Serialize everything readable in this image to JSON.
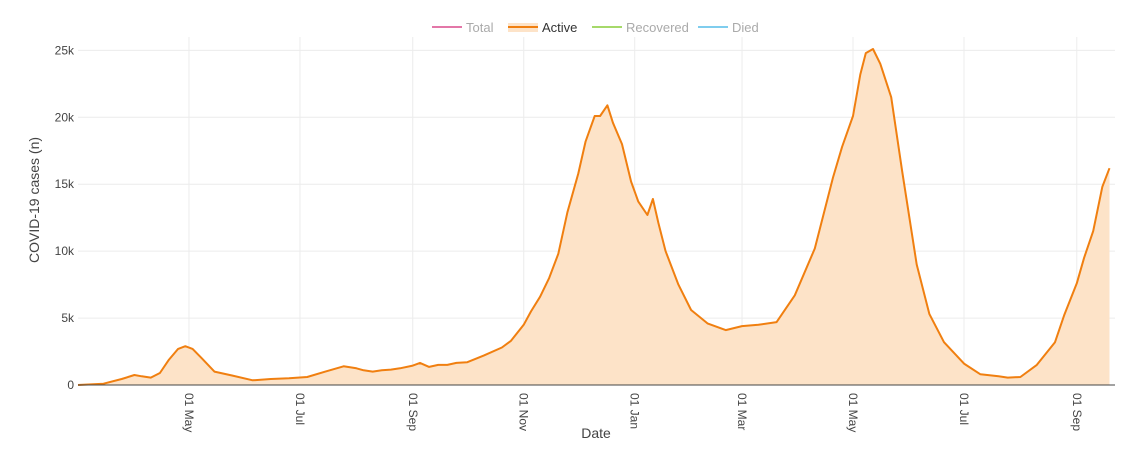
{
  "legend": {
    "items": [
      {
        "label": "Total",
        "color": "#e377a8",
        "muted": true
      },
      {
        "label": "Active",
        "color": "#f07f10",
        "muted": false
      },
      {
        "label": "Recovered",
        "color": "#a6d96a",
        "muted": true
      },
      {
        "label": "Died",
        "color": "#7fcdee",
        "muted": true
      }
    ]
  },
  "colors": {
    "active_line": "#f07f10",
    "active_fill": "#fde3c8",
    "grid": "#ececec",
    "axis_text": "#444444",
    "legend_muted_text": "#aaaaaa"
  },
  "chart_data": {
    "type": "area",
    "xlabel": "Date",
    "ylabel": "COVID-19 cases (n)",
    "xlim": [
      "2020-03-01",
      "2021-09-22"
    ],
    "ylim": [
      0,
      26000
    ],
    "legend_placement": "top-center",
    "grid": true,
    "y_ticks": [
      {
        "value": 0,
        "label": "0"
      },
      {
        "value": 5000,
        "label": "5k"
      },
      {
        "value": 10000,
        "label": "10k"
      },
      {
        "value": 15000,
        "label": "15k"
      },
      {
        "value": 20000,
        "label": "20k"
      },
      {
        "value": 25000,
        "label": "25k"
      }
    ],
    "x_ticks": [
      {
        "date": "2020-05-01",
        "label": "01 May"
      },
      {
        "date": "2020-07-01",
        "label": "01 Jul"
      },
      {
        "date": "2020-09-01",
        "label": "01 Sep"
      },
      {
        "date": "2020-11-01",
        "label": "01 Nov"
      },
      {
        "date": "2021-01-01",
        "label": "01 Jan"
      },
      {
        "date": "2021-03-01",
        "label": "01 Mar"
      },
      {
        "date": "2021-05-01",
        "label": "01 May"
      },
      {
        "date": "2021-07-01",
        "label": "01 Jul"
      },
      {
        "date": "2021-09-01",
        "label": "01 Sep"
      }
    ],
    "series": [
      {
        "name": "Active",
        "x": [
          "2020-03-01",
          "2020-03-15",
          "2020-03-25",
          "2020-04-01",
          "2020-04-05",
          "2020-04-10",
          "2020-04-15",
          "2020-04-20",
          "2020-04-25",
          "2020-04-29",
          "2020-05-03",
          "2020-05-08",
          "2020-05-15",
          "2020-05-25",
          "2020-06-05",
          "2020-06-15",
          "2020-06-25",
          "2020-07-05",
          "2020-07-15",
          "2020-07-25",
          "2020-08-01",
          "2020-08-05",
          "2020-08-10",
          "2020-08-15",
          "2020-08-20",
          "2020-08-25",
          "2020-09-01",
          "2020-09-05",
          "2020-09-10",
          "2020-09-15",
          "2020-09-20",
          "2020-09-25",
          "2020-10-01",
          "2020-10-10",
          "2020-10-20",
          "2020-10-25",
          "2020-11-01",
          "2020-11-05",
          "2020-11-10",
          "2020-11-15",
          "2020-11-20",
          "2020-11-25",
          "2020-12-01",
          "2020-12-05",
          "2020-12-10",
          "2020-12-13",
          "2020-12-17",
          "2020-12-20",
          "2020-12-25",
          "2020-12-30",
          "2021-01-03",
          "2021-01-08",
          "2021-01-11",
          "2021-01-14",
          "2021-01-18",
          "2021-01-25",
          "2021-02-01",
          "2021-02-10",
          "2021-02-20",
          "2021-03-01",
          "2021-03-10",
          "2021-03-20",
          "2021-03-30",
          "2021-04-10",
          "2021-04-20",
          "2021-04-25",
          "2021-05-01",
          "2021-05-05",
          "2021-05-08",
          "2021-05-12",
          "2021-05-16",
          "2021-05-22",
          "2021-05-28",
          "2021-06-05",
          "2021-06-12",
          "2021-06-20",
          "2021-07-01",
          "2021-07-10",
          "2021-07-20",
          "2021-07-25",
          "2021-08-01",
          "2021-08-10",
          "2021-08-20",
          "2021-08-25",
          "2021-09-01",
          "2021-09-05",
          "2021-09-10",
          "2021-09-15",
          "2021-09-19"
        ],
        "values": [
          0,
          100,
          450,
          750,
          650,
          550,
          900,
          1900,
          2700,
          2900,
          2700,
          2000,
          1000,
          700,
          350,
          450,
          500,
          600,
          1000,
          1400,
          1250,
          1100,
          1000,
          1100,
          1150,
          1250,
          1450,
          1650,
          1350,
          1500,
          1500,
          1650,
          1700,
          2200,
          2800,
          3300,
          4500,
          5500,
          6600,
          8000,
          9800,
          12900,
          15800,
          18200,
          20100,
          20100,
          20900,
          19600,
          18000,
          15200,
          13700,
          12700,
          13900,
          12100,
          10000,
          7500,
          5600,
          4600,
          4100,
          4400,
          4500,
          4700,
          6700,
          10200,
          15500,
          17800,
          20100,
          23200,
          24800,
          25100,
          24000,
          21500,
          16000,
          9000,
          5300,
          3200,
          1600,
          800,
          650,
          550,
          600,
          1500,
          3200,
          5200,
          7600,
          9500,
          11500,
          14800,
          16200
        ]
      }
    ]
  }
}
